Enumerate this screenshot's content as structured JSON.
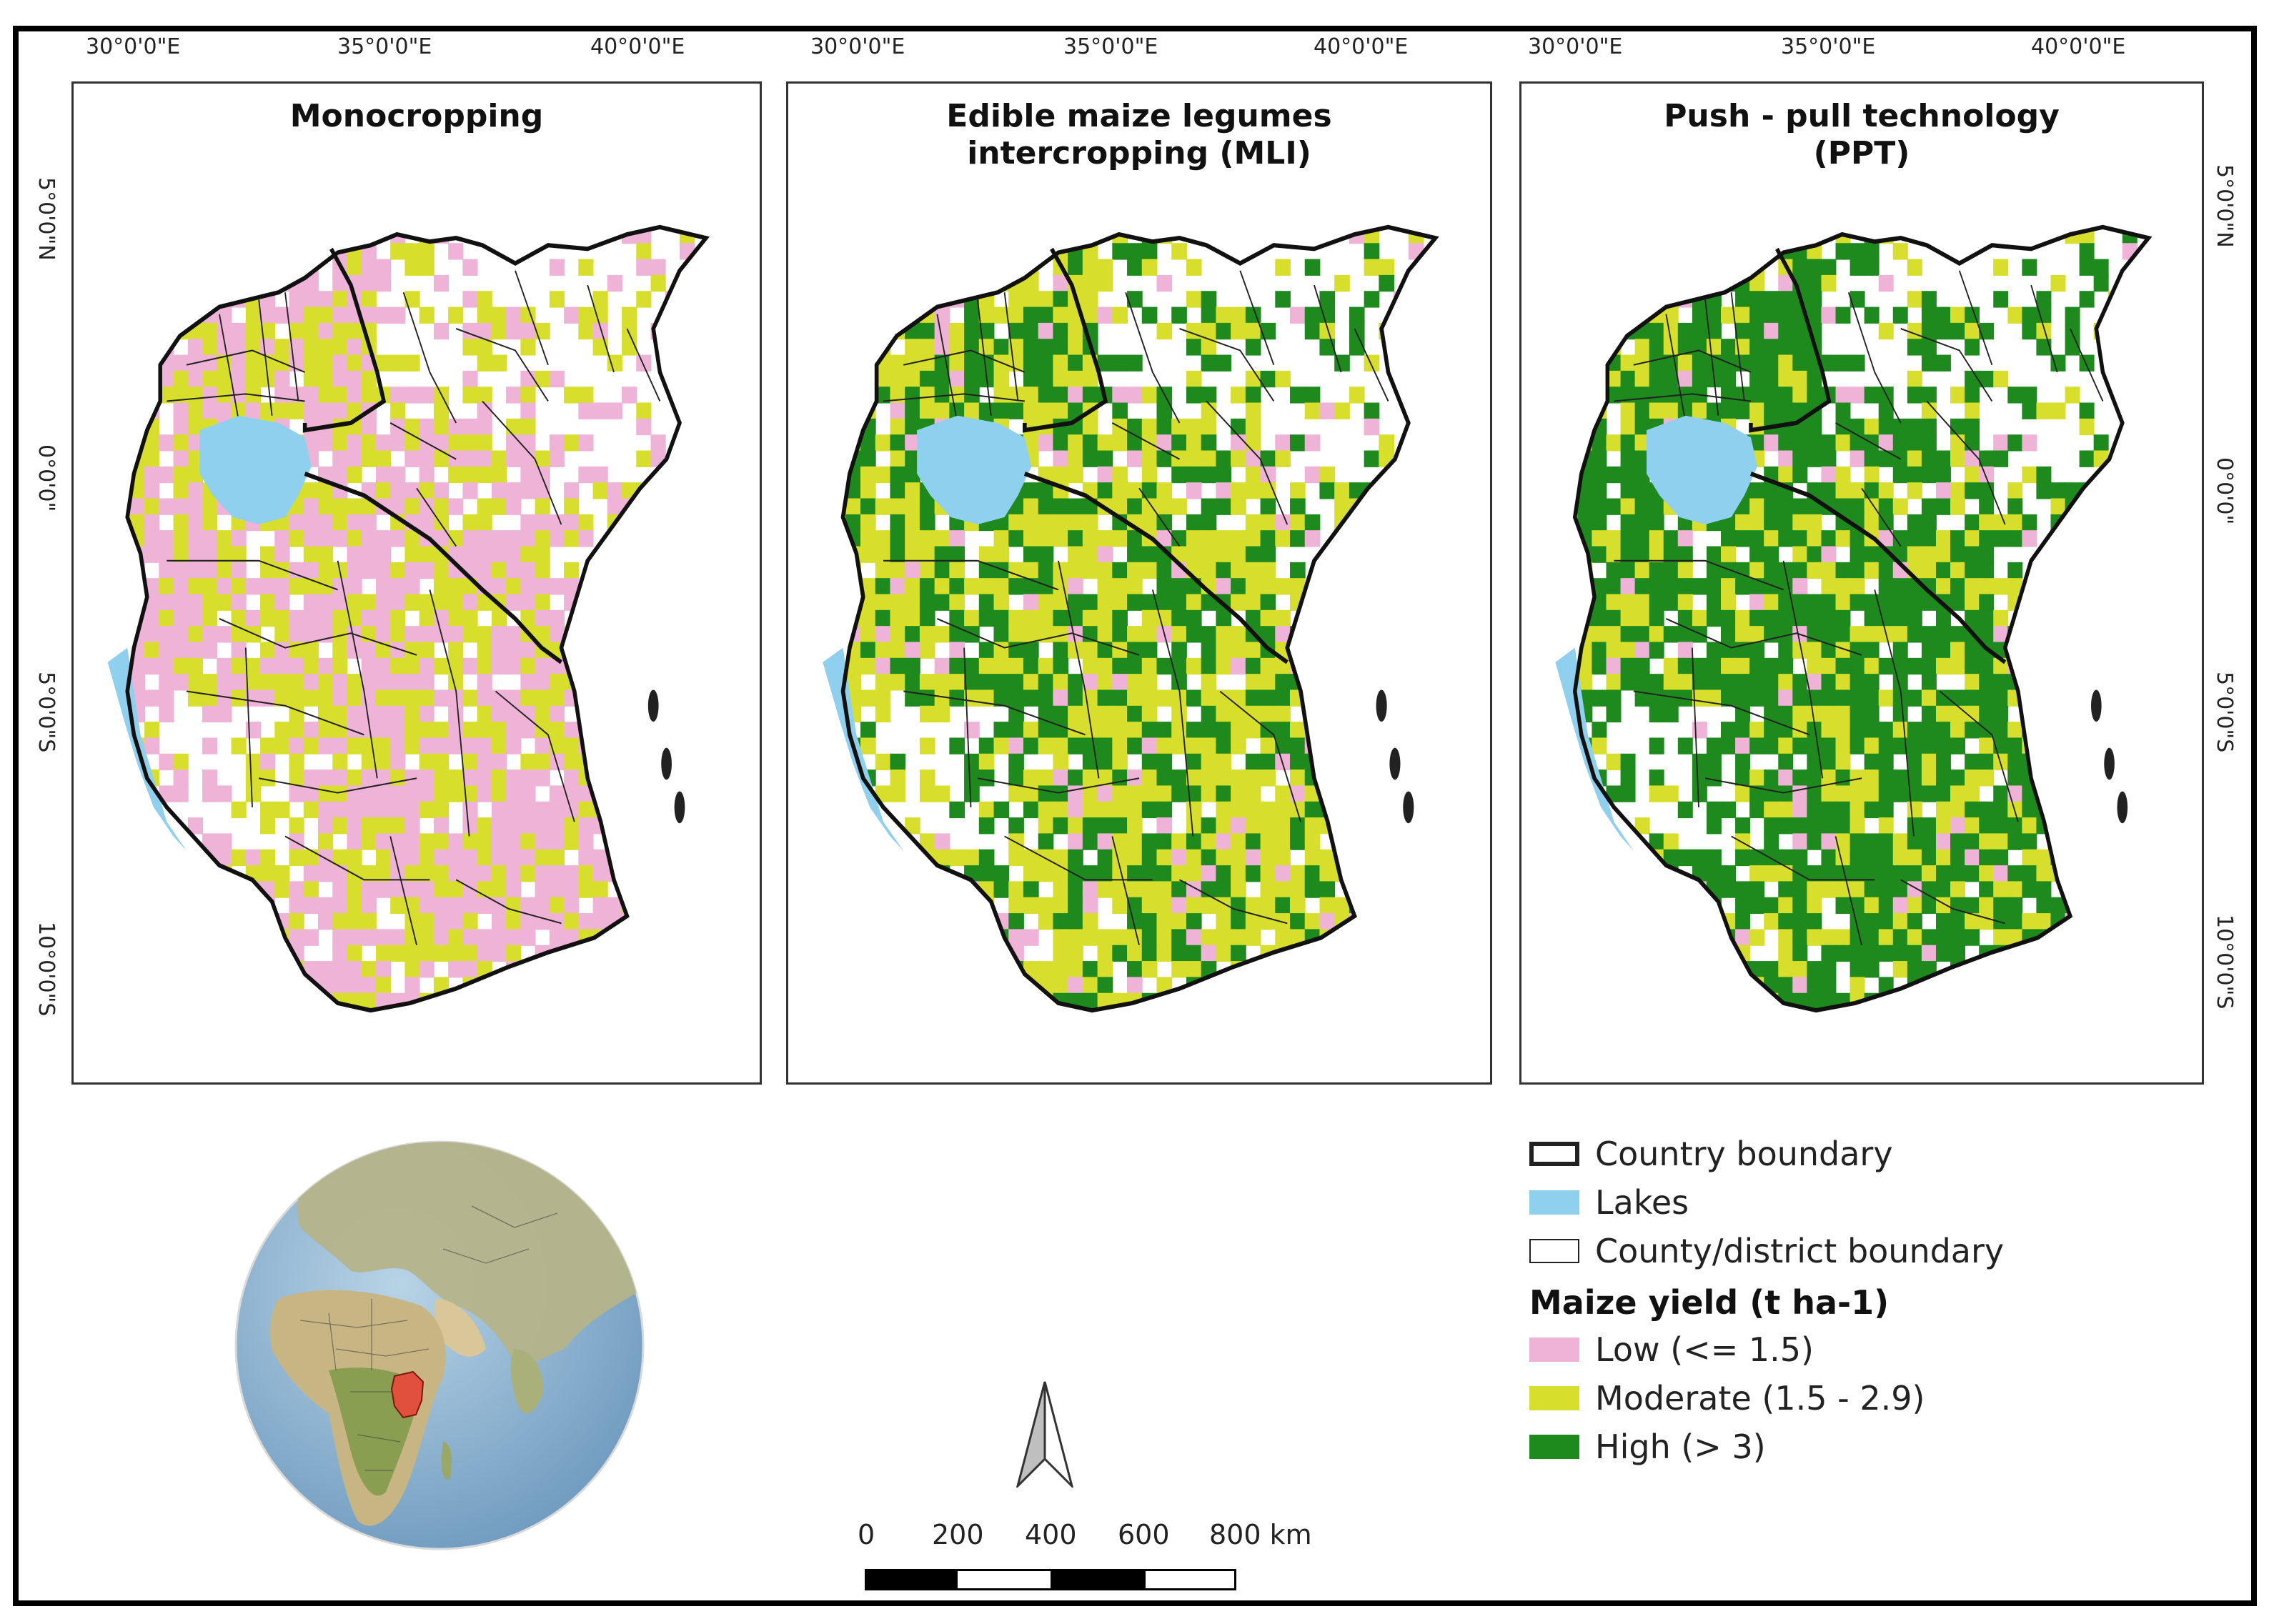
{
  "panels": [
    {
      "title_line1": "Monocropping",
      "title_line2": ""
    },
    {
      "title_line1": "Edible  maize  legumes",
      "title_line2": "intercropping (MLI)"
    },
    {
      "title_line1": "Push - pull technology",
      "title_line2": "(PPT)"
    }
  ],
  "longitude_ticks": [
    "30°0'0\"E",
    "35°0'0\"E",
    "40°0'0\"E"
  ],
  "latitude_ticks": [
    "5°0'0\"N",
    "0°0'0\"",
    "5°0'0\"S",
    "10°0'0\"S"
  ],
  "legend": {
    "items": [
      {
        "label": "Country boundary",
        "swatch": "thick-outline"
      },
      {
        "label": "Lakes",
        "color": "#8fd0ee"
      },
      {
        "label": "County/district boundary",
        "swatch": "thin-outline"
      }
    ],
    "yield_heading": "Maize yield (t ha-1)",
    "yield_classes": [
      {
        "label": "Low (<= 1.5)",
        "color": "#efb3d8"
      },
      {
        "label": "Moderate (1.5 - 2.9)",
        "color": "#d7df2c"
      },
      {
        "label": "High (> 3)",
        "color": "#1e8a1e"
      }
    ]
  },
  "scale_bar": {
    "labels": [
      "0",
      "200",
      "400",
      "600",
      "800 km"
    ]
  },
  "colors": {
    "lake": "#8fd0ee",
    "low": "#efb3d8",
    "moderate": "#d7df2c",
    "high": "#1e8a1e",
    "highlight_country": "#e0503c",
    "ocean": "#7fa8c9"
  }
}
